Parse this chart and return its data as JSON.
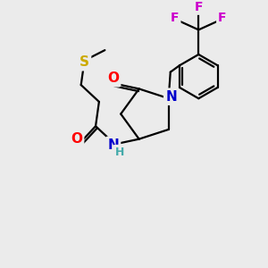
{
  "bg_color": "#ebebeb",
  "bond_color": "#000000",
  "bond_width": 1.6,
  "atom_colors": {
    "O": "#ff0000",
    "N": "#0000cc",
    "S": "#ccaa00",
    "F": "#cc00cc",
    "C": "#000000"
  },
  "figsize": [
    3.0,
    3.0
  ],
  "dpi": 100
}
